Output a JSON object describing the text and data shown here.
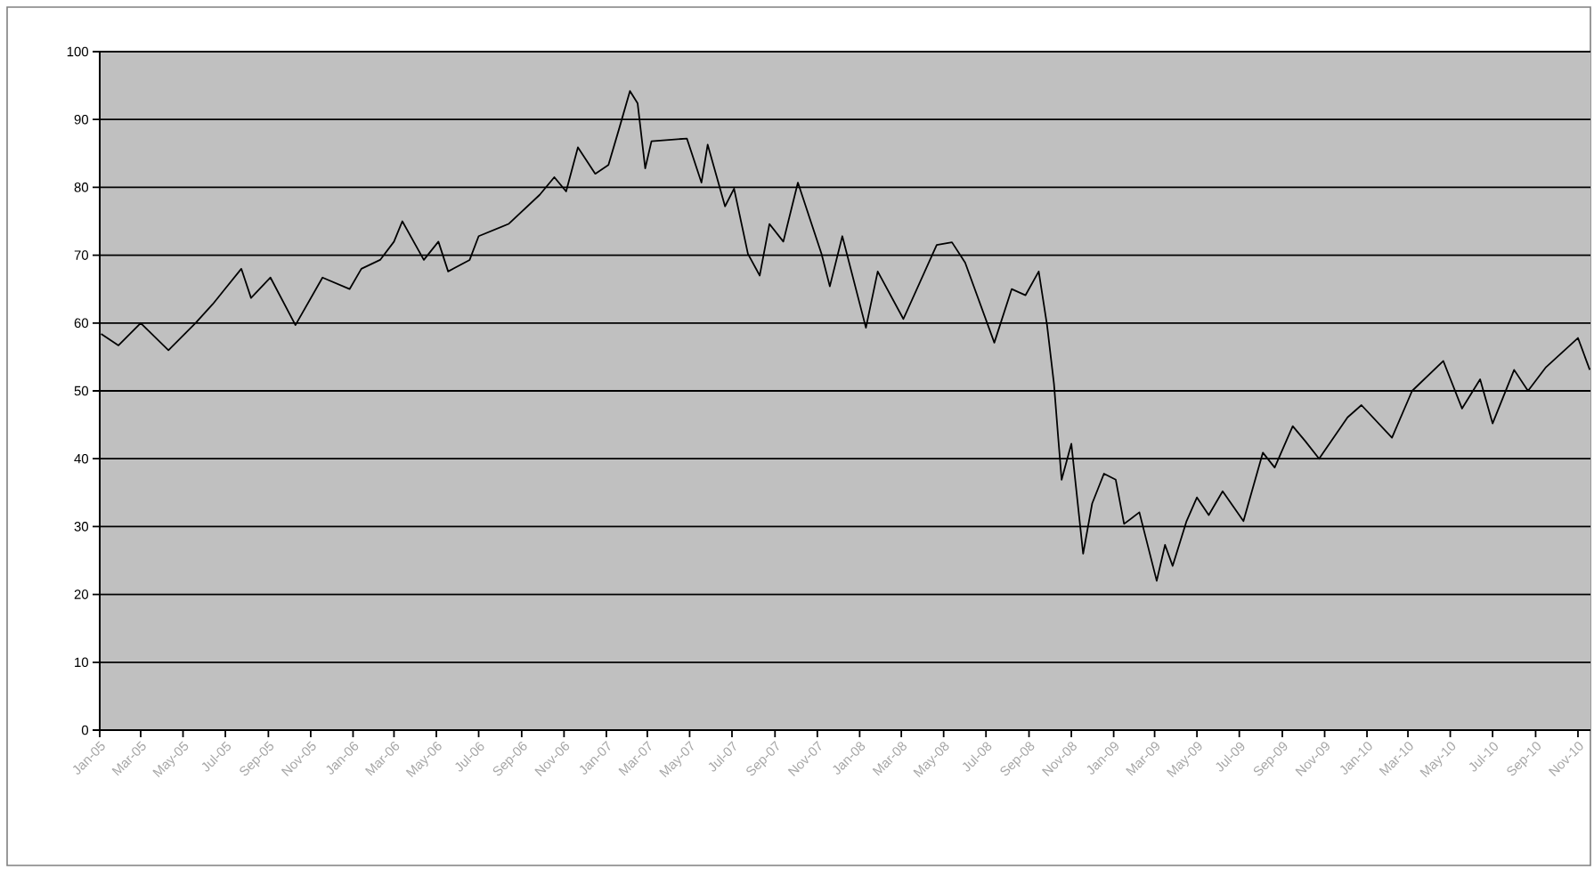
{
  "chart_data": {
    "type": "line",
    "x": [
      "2005-01-03",
      "2005-01-28",
      "2005-03-01",
      "2005-04-10",
      "2005-05-19",
      "2005-06-13",
      "2005-07-24",
      "2005-08-07",
      "2005-09-04",
      "2005-10-10",
      "2005-11-18",
      "2005-12-27",
      "2006-01-13",
      "2006-02-09",
      "2006-03-01",
      "2006-03-13",
      "2006-04-13",
      "2006-05-04",
      "2006-05-18",
      "2006-06-18",
      "2006-07-01",
      "2006-08-13",
      "2006-09-27",
      "2006-10-18",
      "2006-11-04",
      "2006-11-21",
      "2006-12-16",
      "2007-01-04",
      "2007-01-19",
      "2007-02-04",
      "2007-02-15",
      "2007-02-26",
      "2007-03-07",
      "2007-04-27",
      "2007-05-18",
      "2007-05-27",
      "2007-06-21",
      "2007-07-04",
      "2007-07-24",
      "2007-08-10",
      "2007-08-24",
      "2007-09-13",
      "2007-10-04",
      "2007-11-07",
      "2007-11-19",
      "2007-12-07",
      "2008-01-10",
      "2008-01-27",
      "2008-03-04",
      "2008-04-21",
      "2008-05-13",
      "2008-06-01",
      "2008-07-13",
      "2008-08-07",
      "2008-08-27",
      "2008-09-15",
      "2008-09-27",
      "2008-10-07",
      "2008-10-13",
      "2008-10-18",
      "2008-11-01",
      "2008-11-18",
      "2008-12-01",
      "2008-12-18",
      "2009-01-04",
      "2009-01-16",
      "2009-02-07",
      "2009-03-04",
      "2009-03-16",
      "2009-03-27",
      "2009-04-16",
      "2009-05-01",
      "2009-05-18",
      "2009-06-07",
      "2009-07-07",
      "2009-08-04",
      "2009-08-21",
      "2009-09-16",
      "2009-10-04",
      "2009-10-24",
      "2009-12-04",
      "2009-12-24",
      "2010-02-06",
      "2010-03-07",
      "2010-04-21",
      "2010-05-18",
      "2010-06-13",
      "2010-07-01",
      "2010-08-01",
      "2010-08-21",
      "2010-09-16",
      "2010-11-01",
      "2010-11-18"
    ],
    "series": [
      {
        "color": "#000000",
        "values": [
          58.4,
          56.7,
          60,
          56,
          60,
          62.8,
          68,
          63.7,
          66.7,
          59.7,
          66.7,
          65,
          68,
          69.3,
          72,
          75,
          69.3,
          72,
          67.6,
          69.3,
          72.8,
          74.6,
          78.9,
          81.5,
          79.4,
          85.9,
          82,
          83.3,
          88.5,
          94.2,
          92.4,
          82.8,
          86.8,
          87.2,
          80.7,
          86.3,
          77.2,
          79.8,
          70.2,
          67,
          74.6,
          72,
          80.7,
          70.2,
          65.4,
          72.8,
          59.3,
          67.6,
          60.6,
          71.5,
          71.9,
          68.9,
          57.1,
          65,
          64.1,
          67.6,
          59.7,
          51,
          43.2,
          36.9,
          42.2,
          26,
          33.4,
          37.8,
          36.9,
          30.4,
          32.1,
          22,
          27.3,
          24.2,
          30.8,
          34.3,
          31.7,
          35.2,
          30.8,
          40.9,
          38.7,
          44.8,
          42.6,
          40,
          46.1,
          47.9,
          43.1,
          50,
          54.4,
          47.4,
          51.7,
          45.2,
          53.1,
          50,
          53.5,
          57.8,
          53.1
        ]
      }
    ],
    "xlim": [
      "2005-01-01",
      "2010-11-19"
    ],
    "xticks": [
      {
        "value": "2005-01",
        "label": "Jan-05"
      },
      {
        "value": "2005-03",
        "label": "Mar-05"
      },
      {
        "value": "2005-05",
        "label": "May-05"
      },
      {
        "value": "2005-07",
        "label": "Jul-05"
      },
      {
        "value": "2005-09",
        "label": "Sep-05"
      },
      {
        "value": "2005-11",
        "label": "Nov-05"
      },
      {
        "value": "2006-01",
        "label": "Jan-06"
      },
      {
        "value": "2006-03",
        "label": "Mar-06"
      },
      {
        "value": "2006-05",
        "label": "May-06"
      },
      {
        "value": "2006-07",
        "label": "Jul-06"
      },
      {
        "value": "2006-09",
        "label": "Sep-06"
      },
      {
        "value": "2006-11",
        "label": "Nov-06"
      },
      {
        "value": "2007-01",
        "label": "Jan-07"
      },
      {
        "value": "2007-03",
        "label": "Mar-07"
      },
      {
        "value": "2007-05",
        "label": "May-07"
      },
      {
        "value": "2007-07",
        "label": "Jul-07"
      },
      {
        "value": "2007-09",
        "label": "Sep-07"
      },
      {
        "value": "2007-11",
        "label": "Nov-07"
      },
      {
        "value": "2008-01",
        "label": "Jan-08"
      },
      {
        "value": "2008-03",
        "label": "Mar-08"
      },
      {
        "value": "2008-05",
        "label": "May-08"
      },
      {
        "value": "2008-07",
        "label": "Jul-08"
      },
      {
        "value": "2008-09",
        "label": "Sep-08"
      },
      {
        "value": "2008-11",
        "label": "Nov-08"
      },
      {
        "value": "2009-01",
        "label": "Jan-09"
      },
      {
        "value": "2009-03",
        "label": "Mar-09"
      },
      {
        "value": "2009-05",
        "label": "May-09"
      },
      {
        "value": "2009-07",
        "label": "Jul-09"
      },
      {
        "value": "2009-09",
        "label": "Sep-09"
      },
      {
        "value": "2009-11",
        "label": "Nov-09"
      },
      {
        "value": "2010-01",
        "label": "Jan-10"
      },
      {
        "value": "2010-03",
        "label": "Mar-10"
      },
      {
        "value": "2010-05",
        "label": "May-10"
      },
      {
        "value": "2010-07",
        "label": "Jul-10"
      },
      {
        "value": "2010-09",
        "label": "Sep-10"
      },
      {
        "value": "2010-11",
        "label": "Nov-10"
      }
    ],
    "ylim": [
      0,
      100
    ],
    "yticks": [
      0,
      10,
      20,
      30,
      40,
      50,
      60,
      70,
      80,
      90,
      100
    ],
    "grid": "y",
    "legend": false,
    "marker": "none",
    "line_style": "solid"
  }
}
